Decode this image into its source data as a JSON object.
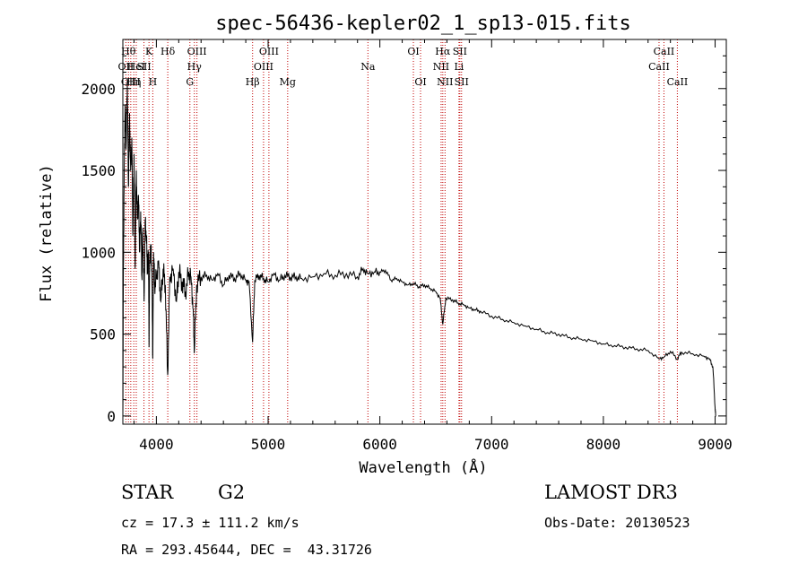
{
  "chart_data": {
    "type": "line",
    "title": "spec-56436-kepler02_1_sp13-015.fits",
    "xlabel": "Wavelength (Å)",
    "ylabel": "Flux (relative)",
    "xlim": [
      3700,
      9100
    ],
    "ylim": [
      -50,
      2300
    ],
    "xticks": [
      4000,
      5000,
      6000,
      7000,
      8000,
      9000
    ],
    "yticks": [
      0,
      500,
      1000,
      1500,
      2000
    ],
    "series": [
      {
        "name": "flux",
        "x": [
          3700,
          3705,
          3712,
          3720,
          3730,
          3740,
          3750,
          3760,
          3770,
          3780,
          3790,
          3800,
          3810,
          3820,
          3830,
          3840,
          3850,
          3860,
          3870,
          3880,
          3890,
          3900,
          3910,
          3920,
          3930,
          3934,
          3940,
          3950,
          3960,
          3968,
          3975,
          3985,
          4000,
          4020,
          4040,
          4060,
          4080,
          4101,
          4120,
          4150,
          4180,
          4200,
          4230,
          4260,
          4290,
          4310,
          4330,
          4340,
          4360,
          4400,
          4450,
          4500,
          4550,
          4600,
          4650,
          4700,
          4750,
          4800,
          4830,
          4861,
          4880,
          4920,
          4960,
          5000,
          5050,
          5100,
          5150,
          5200,
          5250,
          5300,
          5400,
          5500,
          5600,
          5700,
          5800,
          5850,
          5893,
          5950,
          6000,
          6050,
          6100,
          6150,
          6200,
          6250,
          6300,
          6350,
          6400,
          6450,
          6500,
          6540,
          6563,
          6590,
          6650,
          6700,
          6750,
          6800,
          6850,
          6900,
          7000,
          7100,
          7200,
          7300,
          7400,
          7500,
          7600,
          7700,
          7800,
          7900,
          8000,
          8100,
          8200,
          8300,
          8400,
          8498,
          8542,
          8600,
          8662,
          8700,
          8800,
          8900,
          8950,
          8980,
          9000,
          9005
        ],
        "values": [
          0,
          900,
          1500,
          1900,
          1650,
          2050,
          1400,
          1850,
          1500,
          1700,
          1100,
          1600,
          900,
          1500,
          1200,
          1350,
          1000,
          1250,
          850,
          1150,
          700,
          1200,
          1100,
          900,
          1000,
          420,
          950,
          1050,
          900,
          350,
          1000,
          800,
          850,
          950,
          700,
          900,
          800,
          250,
          850,
          900,
          700,
          880,
          820,
          760,
          880,
          850,
          650,
          400,
          800,
          850,
          860,
          830,
          870,
          800,
          860,
          840,
          870,
          830,
          820,
          450,
          830,
          860,
          840,
          820,
          870,
          830,
          860,
          850,
          850,
          840,
          850,
          870,
          860,
          870,
          850,
          900,
          870,
          880,
          880,
          890,
          830,
          840,
          820,
          800,
          810,
          790,
          800,
          780,
          760,
          720,
          560,
          720,
          710,
          690,
          680,
          660,
          650,
          640,
          610,
          590,
          570,
          550,
          530,
          510,
          500,
          480,
          470,
          460,
          440,
          430,
          420,
          410,
          400,
          350,
          360,
          395,
          350,
          390,
          380,
          365,
          350,
          300,
          50,
          0
        ]
      }
    ],
    "line_markers": [
      {
        "wavelength": 3727,
        "label": "OII",
        "row": 2
      },
      {
        "wavelength": 3750,
        "label": "Hθ",
        "row": 1
      },
      {
        "wavelength": 3771,
        "label": "OIII",
        "row": 3
      },
      {
        "wavelength": 3798,
        "label": "Hη",
        "row": 3
      },
      {
        "wavelength": 3820,
        "label": "HeI",
        "row": 2
      },
      {
        "wavelength": 3889,
        "label": "SII",
        "row": 2
      },
      {
        "wavelength": 3934,
        "label": "K",
        "row": 1
      },
      {
        "wavelength": 3968,
        "label": "H",
        "row": 3
      },
      {
        "wavelength": 4102,
        "label": "Hδ",
        "row": 1
      },
      {
        "wavelength": 4300,
        "label": "G",
        "row": 3
      },
      {
        "wavelength": 4340,
        "label": "Hγ",
        "row": 2
      },
      {
        "wavelength": 4363,
        "label": "OIII",
        "row": 1
      },
      {
        "wavelength": 4861,
        "label": "Hβ",
        "row": 3
      },
      {
        "wavelength": 4959,
        "label": "OIII",
        "row": 2
      },
      {
        "wavelength": 5007,
        "label": "OIII",
        "row": 1
      },
      {
        "wavelength": 5175,
        "label": "Mg",
        "row": 3
      },
      {
        "wavelength": 5893,
        "label": "Na",
        "row": 2
      },
      {
        "wavelength": 6300,
        "label": "OI",
        "row": 1
      },
      {
        "wavelength": 6364,
        "label": "OI",
        "row": 3
      },
      {
        "wavelength": 6548,
        "label": "NII",
        "row": 2
      },
      {
        "wavelength": 6563,
        "label": "Hα",
        "row": 1
      },
      {
        "wavelength": 6583,
        "label": "NII",
        "row": 3
      },
      {
        "wavelength": 6708,
        "label": "Li",
        "row": 2
      },
      {
        "wavelength": 6716,
        "label": "SII",
        "row": 1
      },
      {
        "wavelength": 6731,
        "label": "SII",
        "row": 3
      },
      {
        "wavelength": 8498,
        "label": "CaII",
        "row": 2
      },
      {
        "wavelength": 8542,
        "label": "CaII",
        "row": 1
      },
      {
        "wavelength": 8662,
        "label": "CaII",
        "row": 3
      }
    ]
  },
  "info": {
    "class": "STAR",
    "subclass": "G2",
    "survey": "LAMOST DR3",
    "redshift": "cz = 17.3 ± 111.2 km/s",
    "obs_date": "Obs-Date: 20130523",
    "coords": "RA = 293.45644, DEC =  43.31726"
  }
}
